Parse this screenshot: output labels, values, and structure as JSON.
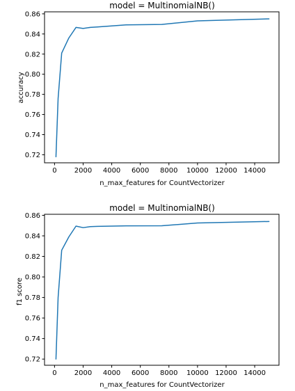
{
  "chart_data": [
    {
      "type": "line",
      "title": "model = MultinomialNB()",
      "xlabel": "n_max_features for CountVectorizer",
      "ylabel": "accuracy",
      "xlim": [
        -700,
        15700
      ],
      "ylim": [
        0.712,
        0.862
      ],
      "xticks": [
        0,
        2000,
        4000,
        6000,
        8000,
        10000,
        12000,
        14000
      ],
      "yticks": [
        0.72,
        0.74,
        0.76,
        0.78,
        0.8,
        0.82,
        0.84,
        0.86
      ],
      "ytick_labels": [
        "0.72",
        "0.74",
        "0.76",
        "0.78",
        "0.80",
        "0.82",
        "0.84",
        "0.86"
      ],
      "grid": false,
      "color": "#1f77b4",
      "series": [
        {
          "x": [
            100,
            250,
            500,
            1000,
            1500,
            2000,
            2500,
            3000,
            5000,
            7500,
            10000,
            15000
          ],
          "y": [
            0.718,
            0.776,
            0.821,
            0.836,
            0.8465,
            0.8455,
            0.8465,
            0.847,
            0.849,
            0.8495,
            0.853,
            0.855
          ]
        }
      ]
    },
    {
      "type": "line",
      "title": "model = MultinomialNB()",
      "xlabel": "n_max_features for CountVectorizer",
      "ylabel": "f1 score",
      "xlim": [
        -700,
        15700
      ],
      "ylim": [
        0.714,
        0.861
      ],
      "xticks": [
        0,
        2000,
        4000,
        6000,
        8000,
        10000,
        12000,
        14000
      ],
      "yticks": [
        0.72,
        0.74,
        0.76,
        0.78,
        0.8,
        0.82,
        0.84,
        0.86
      ],
      "ytick_labels": [
        "0.72",
        "0.74",
        "0.76",
        "0.78",
        "0.80",
        "0.82",
        "0.84",
        "0.86"
      ],
      "grid": false,
      "color": "#1f77b4",
      "series": [
        {
          "x": [
            100,
            250,
            500,
            1000,
            1500,
            2000,
            2500,
            3000,
            5000,
            7500,
            10000,
            15000
          ],
          "y": [
            0.72,
            0.78,
            0.826,
            0.839,
            0.8495,
            0.848,
            0.849,
            0.8492,
            0.8497,
            0.8498,
            0.8525,
            0.854
          ]
        }
      ]
    }
  ]
}
